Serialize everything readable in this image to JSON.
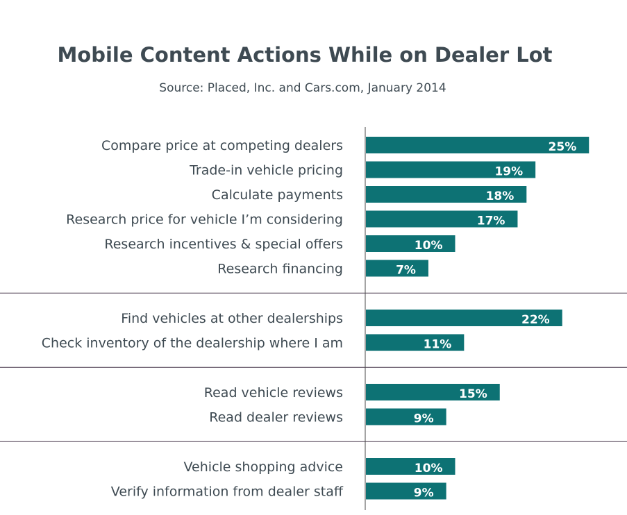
{
  "chart_data": {
    "type": "bar",
    "orientation": "horizontal",
    "title": "Mobile Content Actions While on Dealer Lot",
    "subtitle": "Source: Placed, Inc. and Cars.com, January 2014",
    "xlabel": "",
    "ylabel": "",
    "xlim": [
      0,
      25
    ],
    "value_suffix": "%",
    "groups": [
      [
        {
          "label": "Compare price at competing dealers",
          "value": 25
        },
        {
          "label": "Trade-in vehicle pricing",
          "value": 19
        },
        {
          "label": "Calculate payments",
          "value": 18
        },
        {
          "label": "Research price for vehicle I’m considering",
          "value": 17
        },
        {
          "label": "Research incentives & special offers",
          "value": 10
        },
        {
          "label": "Research financing",
          "value": 7
        }
      ],
      [
        {
          "label": "Find vehicles at other dealerships",
          "value": 22
        },
        {
          "label": "Check inventory of the dealership where I am",
          "value": 11
        }
      ],
      [
        {
          "label": "Read vehicle reviews",
          "value": 15
        },
        {
          "label": "Read dealer reviews",
          "value": 9
        }
      ],
      [
        {
          "label": "Vehicle shopping advice",
          "value": 10
        },
        {
          "label": "Verify information from dealer staff",
          "value": 9
        }
      ]
    ],
    "colors": {
      "bar": "#0d7274",
      "text": "#3e4a52",
      "separator": "#4a3a4e",
      "axis": "#4a4a4a"
    }
  }
}
